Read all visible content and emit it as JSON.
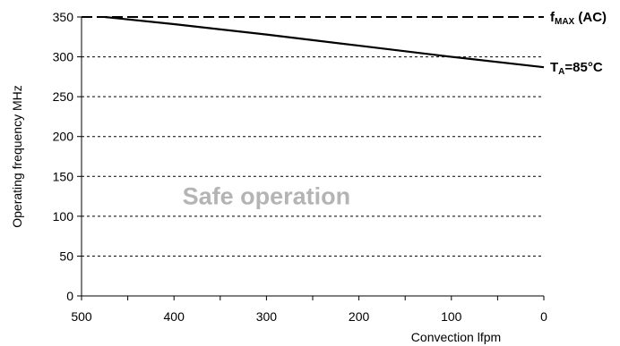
{
  "chart_data": {
    "type": "line",
    "xlabel": "Convection lfpm",
    "ylabel": "Operating frequency MHz",
    "xlim": [
      500,
      0
    ],
    "ylim": [
      0,
      350
    ],
    "x_ticks": [
      "500",
      "400",
      "300",
      "200",
      "100",
      "0"
    ],
    "y_ticks": [
      "0",
      "50",
      "100",
      "150",
      "200",
      "250",
      "300",
      "350"
    ],
    "grid": "horizontal dashed",
    "series": [
      {
        "name": "TA=85°C",
        "label_main": "T",
        "label_sub": "A",
        "label_tail": "=85°C",
        "style": "solid",
        "x": [
          475,
          400,
          300,
          200,
          100,
          0
        ],
        "y": [
          350,
          341,
          328,
          314,
          300,
          287
        ]
      },
      {
        "name": "fMAX (AC)",
        "label_main": "f",
        "label_sub": "MAX",
        "label_tail": " (AC)",
        "style": "dashed",
        "x": [
          500,
          0
        ],
        "y": [
          350,
          350
        ]
      }
    ],
    "annotations": [
      {
        "text": "Safe operation",
        "x": 300,
        "y": 115
      }
    ]
  }
}
